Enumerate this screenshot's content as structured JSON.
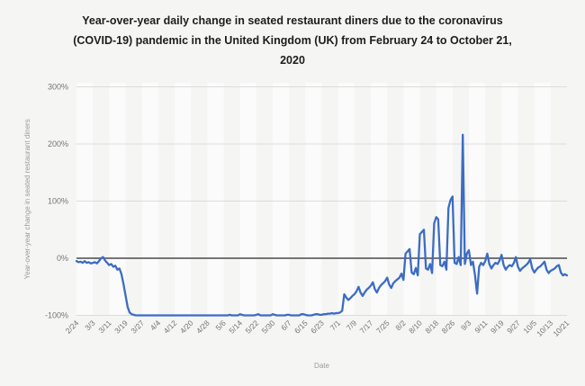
{
  "header": {
    "line1": "Year-over-year daily change in seated restaurant diners due to the coronavirus",
    "line2": "(COVID-19) pandemic in the United Kingdom (UK) from February 24 to October 21,",
    "line3": "2020"
  },
  "chart_data": {
    "type": "line",
    "title": "Year-over-year daily change in seated restaurant diners due to the coronavirus (COVID-19) pandemic in the United Kingdom (UK) from February 24 to October 21, 2020",
    "xlabel": "Date",
    "ylabel": "Year-over-year change in seated restaurant diners",
    "x_start": "2020-02-24",
    "x_end": "2020-10-21",
    "x_frequency": "daily",
    "x_tick_labels": [
      "2/24",
      "3/3",
      "3/11",
      "3/19",
      "3/27",
      "4/4",
      "4/12",
      "4/20",
      "4/28",
      "5/6",
      "5/14",
      "5/22",
      "5/30",
      "6/7",
      "6/15",
      "6/23",
      "7/1",
      "7/9",
      "7/17",
      "7/25",
      "8/2",
      "8/10",
      "8/18",
      "8/26",
      "9/3",
      "9/11",
      "9/19",
      "9/27",
      "10/5",
      "10/13",
      "10/21"
    ],
    "x_tick_interval_days": 8,
    "y_ticks": [
      300,
      200,
      100,
      0,
      -100
    ],
    "y_tick_suffix": "%",
    "ylim": [
      -100,
      310
    ],
    "grid": "horizontal",
    "legend": "none",
    "line_color": "#3c6cc3",
    "zero_line_color": "#4a4a4a",
    "gridline_color": "#dcdcdc",
    "values": [
      -5,
      -7,
      -6,
      -8,
      -5,
      -8,
      -7,
      -9,
      -8,
      -7,
      -9,
      -5,
      0,
      2,
      -4,
      -8,
      -12,
      -10,
      -15,
      -13,
      -20,
      -18,
      -28,
      -45,
      -65,
      -85,
      -95,
      -98,
      -99,
      -100,
      -100,
      -100,
      -100,
      -100,
      -100,
      -100,
      -100,
      -100,
      -100,
      -100,
      -100,
      -100,
      -100,
      -100,
      -100,
      -100,
      -100,
      -100,
      -100,
      -100,
      -100,
      -100,
      -100,
      -100,
      -100,
      -100,
      -100,
      -100,
      -100,
      -100,
      -100,
      -100,
      -100,
      -100,
      -100,
      -100,
      -100,
      -100,
      -100,
      -100,
      -100,
      -100,
      -100,
      -100,
      -100,
      -99,
      -100,
      -100,
      -100,
      -100,
      -98,
      -99,
      -100,
      -100,
      -100,
      -100,
      -100,
      -100,
      -99,
      -98,
      -100,
      -100,
      -100,
      -100,
      -100,
      -100,
      -98,
      -99,
      -100,
      -100,
      -100,
      -100,
      -100,
      -99,
      -99,
      -100,
      -100,
      -100,
      -100,
      -100,
      -98,
      -98,
      -99,
      -100,
      -100,
      -100,
      -99,
      -98,
      -98,
      -99,
      -99,
      -98,
      -98,
      -97,
      -97,
      -96,
      -97,
      -96,
      -96,
      -95,
      -92,
      -63,
      -69,
      -73,
      -70,
      -66,
      -63,
      -58,
      -50,
      -60,
      -66,
      -60,
      -55,
      -52,
      -48,
      -42,
      -54,
      -60,
      -52,
      -47,
      -44,
      -40,
      -34,
      -46,
      -52,
      -44,
      -40,
      -37,
      -34,
      -27,
      -38,
      8,
      12,
      16,
      -25,
      -28,
      -17,
      -30,
      42,
      46,
      50,
      -18,
      -20,
      -10,
      -26,
      61,
      72,
      68,
      -12,
      -14,
      -6,
      -20,
      88,
      102,
      108,
      -8,
      -10,
      2,
      -12,
      216,
      -10,
      8,
      14,
      -12,
      -6,
      -30,
      -62,
      -15,
      -8,
      -12,
      -5,
      8,
      -10,
      -18,
      -12,
      -8,
      -10,
      -4,
      6,
      -12,
      -20,
      -15,
      -12,
      -14,
      -8,
      2,
      -15,
      -22,
      -18,
      -15,
      -12,
      -8,
      -2,
      -18,
      -25,
      -20,
      -16,
      -14,
      -10,
      -6,
      -20,
      -26,
      -22,
      -20,
      -18,
      -14,
      -12,
      -25,
      -30,
      -28,
      -30
    ]
  }
}
